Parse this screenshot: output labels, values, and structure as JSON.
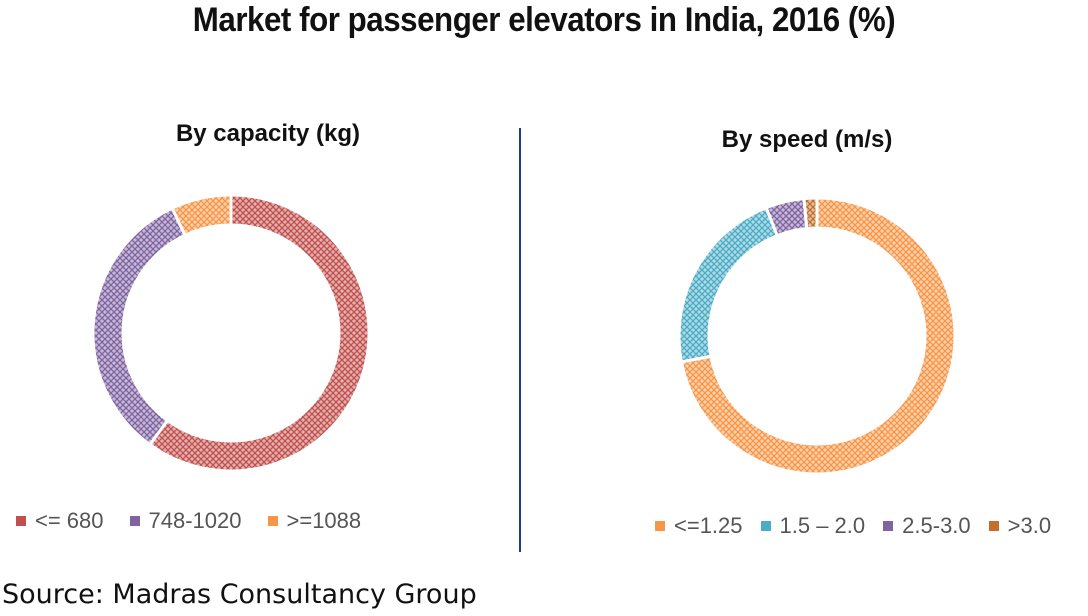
{
  "title": "Market for passenger elevators in India, 2016 (%)",
  "source": "Source: Madras Consultancy Group",
  "chart_data": [
    {
      "type": "pie",
      "donut": true,
      "title": "By capacity (kg)",
      "categories": [
        "<= 680",
        "748-1020",
        ">=1088"
      ],
      "values": [
        60,
        33,
        7
      ],
      "colors": [
        "#c0504d",
        "#8064a2",
        "#f79646"
      ],
      "legend_position": "bottom"
    },
    {
      "type": "pie",
      "donut": true,
      "title": "By speed (m/s)",
      "categories": [
        "<=1.25",
        "1.5 – 2.0",
        "2.5-3.0",
        ">3.0"
      ],
      "values": [
        72,
        22,
        4.5,
        1.5
      ],
      "colors": [
        "#f79646",
        "#4bacc6",
        "#8064a2",
        "#c0702a"
      ],
      "legend_position": "bottom"
    }
  ]
}
